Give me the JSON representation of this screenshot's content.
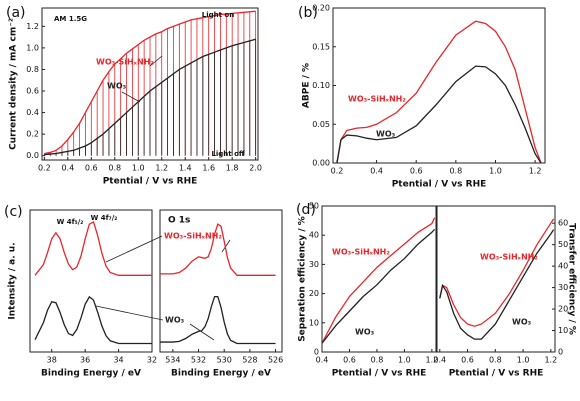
{
  "chart_data": [
    {
      "type": "line",
      "label": "(a)",
      "xlabel": "Ptential / V vs RHE",
      "ylabel": "Current density / mA cm⁻²",
      "chopped": true,
      "annotations": [
        "AM 1.5G",
        "Light on",
        "Light off"
      ],
      "xlim": [
        0.18,
        2.02
      ],
      "ylim": [
        -0.04,
        1.37
      ],
      "xticks": [
        0.2,
        0.4,
        0.6,
        0.8,
        {
          "value": 1.0,
          "label": "1.0"
        },
        1.2,
        1.4,
        1.6,
        1.8,
        {
          "value": 2.0,
          "label": "2.0"
        }
      ],
      "yticks": [
        {
          "value": 0.0,
          "label": "0.0"
        },
        0.2,
        0.4,
        0.6,
        0.8,
        {
          "value": 1.0,
          "label": "1.0"
        },
        1.2
      ],
      "x": [
        0.2,
        0.25,
        0.3,
        0.35,
        0.4,
        0.45,
        0.5,
        0.55,
        0.6,
        0.65,
        0.7,
        0.75,
        0.8,
        0.85,
        0.9,
        0.95,
        1.0,
        1.05,
        1.1,
        1.15,
        1.2,
        1.25,
        1.3,
        1.35,
        1.4,
        1.45,
        1.5,
        1.55,
        1.6,
        1.65,
        1.7,
        1.75,
        1.8,
        1.85,
        1.9,
        1.95,
        2.0
      ],
      "series": [
        {
          "name": "WO₃-SiHₓNH₂",
          "color": "#e8262b",
          "values": [
            0.02,
            0.03,
            0.05,
            0.09,
            0.15,
            0.22,
            0.3,
            0.4,
            0.5,
            0.6,
            0.7,
            0.78,
            0.85,
            0.9,
            0.95,
            0.99,
            1.03,
            1.07,
            1.1,
            1.13,
            1.15,
            1.18,
            1.2,
            1.22,
            1.24,
            1.26,
            1.27,
            1.28,
            1.29,
            1.3,
            1.31,
            1.315,
            1.32,
            1.325,
            1.33,
            1.335,
            1.34
          ]
        },
        {
          "name": "WO₃",
          "color": "#222222",
          "values": [
            0.01,
            0.015,
            0.02,
            0.03,
            0.04,
            0.05,
            0.07,
            0.09,
            0.12,
            0.16,
            0.2,
            0.25,
            0.3,
            0.35,
            0.4,
            0.45,
            0.5,
            0.55,
            0.6,
            0.64,
            0.68,
            0.72,
            0.76,
            0.8,
            0.83,
            0.86,
            0.89,
            0.92,
            0.94,
            0.96,
            0.98,
            1.0,
            1.02,
            1.035,
            1.05,
            1.065,
            1.08
          ]
        }
      ]
    },
    {
      "type": "line",
      "label": "(b)",
      "xlabel": "Ptential / V vs RHE",
      "ylabel": "ABPE / %",
      "xlim": [
        0.18,
        1.25
      ],
      "ylim": [
        0,
        0.2
      ],
      "xticks": [
        0.2,
        0.4,
        0.6,
        0.8,
        {
          "value": 1.0,
          "label": "1.0"
        },
        1.2
      ],
      "yticks": [
        {
          "value": 0,
          "label": "0.00"
        },
        0.05,
        {
          "value": 0.1,
          "label": "0.10"
        },
        0.15,
        {
          "value": 0.2,
          "label": "0.20"
        }
      ],
      "x": [
        0.2,
        0.22,
        0.25,
        0.3,
        0.35,
        0.4,
        0.5,
        0.6,
        0.7,
        0.8,
        0.9,
        0.95,
        1.0,
        1.05,
        1.1,
        1.15,
        1.2,
        1.23
      ],
      "series": [
        {
          "name": "WO₃-SiHₓNH₂",
          "color": "#e8262b",
          "values": [
            0,
            0.03,
            0.042,
            0.045,
            0.046,
            0.05,
            0.065,
            0.09,
            0.13,
            0.165,
            0.183,
            0.18,
            0.17,
            0.15,
            0.12,
            0.07,
            0.02,
            0
          ]
        },
        {
          "name": "WO₃",
          "color": "#222222",
          "values": [
            0,
            0.03,
            0.036,
            0.035,
            0.032,
            0.03,
            0.033,
            0.048,
            0.075,
            0.105,
            0.125,
            0.124,
            0.115,
            0.1,
            0.075,
            0.045,
            0.012,
            0
          ]
        }
      ]
    },
    {
      "type": "line",
      "label": "(c)",
      "xlabel": "Binding Energy / eV",
      "ylabel": "Intensity / a. u.",
      "annotations": [
        "W 4f₅/₂",
        "W 4f₇/₂"
      ],
      "xlim": [
        39.3,
        32
      ],
      "ylim": [
        0,
        10
      ],
      "xticks": [
        38,
        36,
        34,
        32
      ],
      "x": [
        39,
        38.5,
        38.25,
        38,
        37.75,
        37.5,
        37.25,
        37,
        36.75,
        36.5,
        36.25,
        36,
        35.75,
        35.5,
        35.25,
        35,
        34.75,
        34.5,
        34,
        33,
        32
      ],
      "series": [
        {
          "name": "WO₃-SiHₓNH₂",
          "color": "#e8262b",
          "values": [
            5.4,
            6.15,
            7.0,
            7.97,
            8.4,
            7.97,
            7.0,
            6.2,
            5.8,
            5.97,
            6.75,
            7.96,
            9.0,
            9.16,
            8.2,
            6.96,
            6.04,
            5.6,
            5.4,
            5.4,
            5.4
          ]
        },
        {
          "name": "WO₃",
          "color": "#222222",
          "values": [
            0.87,
            2.06,
            2.95,
            3.54,
            3.47,
            2.78,
            1.92,
            1.3,
            1.17,
            1.58,
            2.4,
            3.36,
            3.88,
            3.65,
            2.8,
            1.84,
            1.14,
            0.79,
            0.6,
            0.6,
            0.6
          ]
        }
      ]
    },
    {
      "type": "line",
      "title": "O 1s",
      "xlabel": "Binding Energy / eV",
      "xlim": [
        535,
        525.5
      ],
      "ylim": [
        0,
        10
      ],
      "xticks": [
        534,
        532,
        530,
        528,
        526
      ],
      "x": [
        535,
        534,
        533.5,
        533,
        532.5,
        532,
        531.75,
        531.5,
        531.25,
        531,
        530.75,
        530.5,
        530.25,
        530,
        529.75,
        529.5,
        529,
        528,
        527,
        526
      ],
      "series": [
        {
          "color": "#e8262b",
          "values": [
            5.5,
            5.5,
            5.6,
            5.9,
            6.4,
            6.7,
            6.65,
            6.6,
            6.7,
            7.3,
            8.3,
            9.0,
            8.85,
            7.8,
            6.65,
            5.9,
            5.4,
            5.4,
            5.4,
            5.4
          ]
        },
        {
          "color": "#222222",
          "values": [
            0.7,
            0.7,
            0.75,
            0.95,
            1.25,
            1.45,
            1.5,
            1.78,
            2.35,
            3.2,
            3.9,
            3.9,
            3.15,
            2.1,
            1.27,
            0.82,
            0.6,
            0.6,
            0.6,
            0.6
          ]
        }
      ]
    },
    {
      "type": "line",
      "label": "(d)",
      "xlabel": "Ptential / V vs RHE",
      "ylabel": "Separation efficiency / %",
      "xlim": [
        0.4,
        1.23
      ],
      "ylim": [
        0,
        50
      ],
      "xticks": [
        0.4,
        0.6,
        0.8,
        {
          "value": 1.0,
          "label": "1.0"
        },
        1.2
      ],
      "yticks": [
        0,
        10,
        20,
        30,
        40,
        50
      ],
      "x": [
        0.4,
        0.5,
        0.6,
        0.7,
        0.8,
        0.9,
        1.0,
        1.1,
        1.2,
        1.22
      ],
      "series": [
        {
          "name": "WO₃-SiHₓNH₂",
          "color": "#e8262b",
          "values": [
            3,
            12,
            19,
            24,
            29,
            33,
            37,
            41,
            44,
            46
          ]
        },
        {
          "name": "WO₃",
          "color": "#222222",
          "values": [
            3,
            9,
            14,
            19,
            23,
            28,
            32,
            37,
            41,
            42
          ]
        }
      ]
    },
    {
      "type": "line",
      "xlabel": "Ptential / V vs RHE",
      "ylabel": "Transfer efficiency / %",
      "y_axis_position": "right",
      "xlim": [
        0.38,
        1.23
      ],
      "ylim": [
        0,
        68
      ],
      "xticks": [
        0.4,
        0.6,
        0.8,
        {
          "value": 1.0,
          "label": "1.0"
        },
        1.2
      ],
      "yticks": [
        0,
        10,
        20,
        30,
        40,
        50,
        60
      ],
      "x": [
        0.4,
        0.42,
        0.45,
        0.5,
        0.55,
        0.6,
        0.65,
        0.7,
        0.8,
        0.9,
        1.0,
        1.1,
        1.2,
        1.22
      ],
      "series": [
        {
          "name": "WO₃-SiHₓNH₂",
          "color": "#e8262b",
          "values": [
            25,
            31,
            30,
            22,
            16,
            13,
            12,
            13,
            18,
            27,
            38,
            50,
            60,
            62
          ]
        },
        {
          "name": "WO₃",
          "color": "#222222",
          "values": [
            25,
            31,
            28,
            18,
            11,
            8,
            6,
            6,
            13,
            24,
            35,
            46,
            55,
            57
          ]
        }
      ]
    }
  ]
}
